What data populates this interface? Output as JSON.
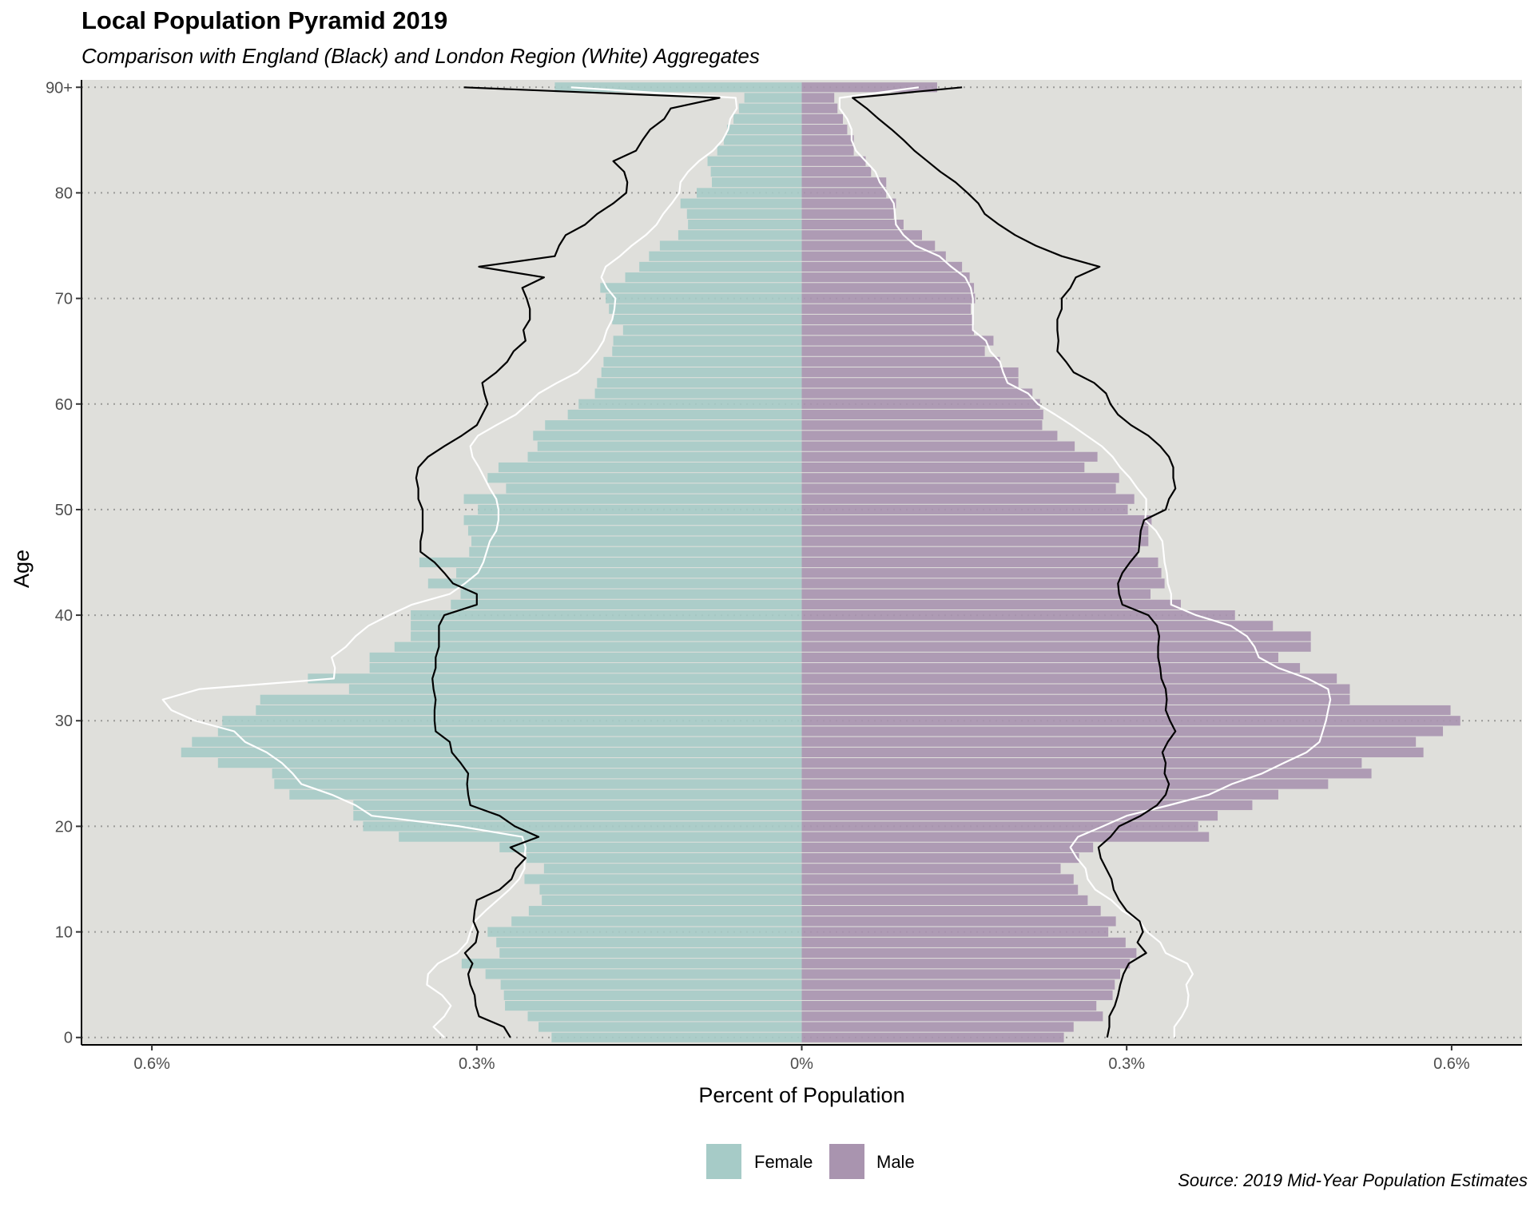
{
  "chart_data": {
    "type": "bar",
    "orientation": "horizontal",
    "title": "Local Population Pyramid 2019",
    "subtitle": "Comparison with England (Black) and London Region (White) Aggregates",
    "caption": "Source: 2019 Mid-Year Population Estimates",
    "xlabel": "Percent of Population",
    "ylabel": "Age",
    "xlim": [
      -0.665,
      0.665
    ],
    "x_tick_values": [
      -0.6,
      -0.3,
      0,
      0.3,
      0.6
    ],
    "x_tick_labels": [
      "0.6%",
      "0.3%",
      "0%",
      "0.3%",
      "0.6%"
    ],
    "y_tick_values": [
      0,
      10,
      20,
      30,
      40,
      50,
      60,
      70,
      80,
      90
    ],
    "y_tick_labels": [
      "0",
      "10",
      "20",
      "30",
      "40",
      "50",
      "60",
      "70",
      "80",
      "90+"
    ],
    "ylim": [
      -0.7,
      90.7
    ],
    "grid": "horizontal dotted at labelled ages",
    "legend_position": "bottom",
    "panel_background": "#dfdfdb",
    "ages": [
      0,
      1,
      2,
      3,
      4,
      5,
      6,
      7,
      8,
      9,
      10,
      11,
      12,
      13,
      14,
      15,
      16,
      17,
      18,
      19,
      20,
      21,
      22,
      23,
      24,
      25,
      26,
      27,
      28,
      29,
      30,
      31,
      32,
      33,
      34,
      35,
      36,
      37,
      38,
      39,
      40,
      41,
      42,
      43,
      44,
      45,
      46,
      47,
      48,
      49,
      50,
      51,
      52,
      53,
      54,
      55,
      56,
      57,
      58,
      59,
      60,
      61,
      62,
      63,
      64,
      65,
      66,
      67,
      68,
      69,
      70,
      71,
      72,
      73,
      74,
      75,
      76,
      77,
      78,
      79,
      80,
      81,
      82,
      83,
      84,
      85,
      86,
      87,
      88,
      89,
      90
    ],
    "series": [
      {
        "name": "Female",
        "color": "#a6cbc7",
        "values": [
          0.231,
          0.243,
          0.253,
          0.274,
          0.275,
          0.278,
          0.292,
          0.314,
          0.279,
          0.282,
          0.29,
          0.268,
          0.252,
          0.24,
          0.242,
          0.256,
          0.238,
          0.254,
          0.279,
          0.372,
          0.405,
          0.414,
          0.414,
          0.473,
          0.487,
          0.489,
          0.539,
          0.573,
          0.563,
          0.539,
          0.535,
          0.504,
          0.5,
          0.418,
          0.456,
          0.399,
          0.399,
          0.376,
          0.361,
          0.361,
          0.361,
          0.324,
          0.315,
          0.345,
          0.319,
          0.353,
          0.307,
          0.305,
          0.308,
          0.312,
          0.299,
          0.312,
          0.273,
          0.29,
          0.28,
          0.253,
          0.244,
          0.248,
          0.237,
          0.216,
          0.206,
          0.191,
          0.189,
          0.185,
          0.183,
          0.175,
          0.174,
          0.165,
          0.175,
          0.178,
          0.181,
          0.186,
          0.163,
          0.15,
          0.141,
          0.131,
          0.114,
          0.105,
          0.106,
          0.112,
          0.097,
          0.083,
          0.084,
          0.087,
          0.078,
          0.072,
          0.069,
          0.063,
          0.058,
          0.053,
          0.228
        ],
        "bar_opacity": 0.9
      },
      {
        "name": "Male",
        "color": "#a994af",
        "values": [
          0.242,
          0.251,
          0.278,
          0.272,
          0.287,
          0.289,
          0.294,
          0.303,
          0.309,
          0.299,
          0.283,
          0.29,
          0.276,
          0.264,
          0.255,
          0.251,
          0.239,
          0.256,
          0.269,
          0.376,
          0.366,
          0.384,
          0.416,
          0.44,
          0.486,
          0.526,
          0.517,
          0.574,
          0.567,
          0.592,
          0.608,
          0.599,
          0.506,
          0.506,
          0.494,
          0.46,
          0.44,
          0.47,
          0.47,
          0.435,
          0.4,
          0.35,
          0.322,
          0.335,
          0.332,
          0.329,
          0.31,
          0.32,
          0.32,
          0.323,
          0.301,
          0.307,
          0.29,
          0.293,
          0.261,
          0.273,
          0.252,
          0.236,
          0.222,
          0.223,
          0.22,
          0.213,
          0.2,
          0.2,
          0.183,
          0.169,
          0.177,
          0.159,
          0.158,
          0.156,
          0.16,
          0.159,
          0.155,
          0.148,
          0.133,
          0.123,
          0.111,
          0.094,
          0.085,
          0.087,
          0.078,
          0.078,
          0.064,
          0.059,
          0.048,
          0.048,
          0.042,
          0.038,
          0.033,
          0.03,
          0.125
        ],
        "bar_opacity": 0.9
      }
    ],
    "reference_lines": [
      {
        "name": "England",
        "color": "#000000",
        "female": [
          0.269,
          0.275,
          0.298,
          0.301,
          0.302,
          0.306,
          0.308,
          0.304,
          0.311,
          0.301,
          0.299,
          0.303,
          0.302,
          0.3,
          0.279,
          0.268,
          0.264,
          0.255,
          0.269,
          0.243,
          0.265,
          0.279,
          0.306,
          0.308,
          0.309,
          0.308,
          0.315,
          0.323,
          0.325,
          0.338,
          0.339,
          0.339,
          0.338,
          0.34,
          0.341,
          0.338,
          0.338,
          0.335,
          0.335,
          0.335,
          0.33,
          0.3,
          0.3,
          0.322,
          0.33,
          0.339,
          0.352,
          0.352,
          0.35,
          0.35,
          0.35,
          0.354,
          0.354,
          0.356,
          0.354,
          0.345,
          0.33,
          0.314,
          0.3,
          0.295,
          0.29,
          0.293,
          0.295,
          0.282,
          0.272,
          0.266,
          0.255,
          0.257,
          0.251,
          0.251,
          0.254,
          0.258,
          0.238,
          0.298,
          0.228,
          0.224,
          0.218,
          0.2,
          0.189,
          0.174,
          0.162,
          0.161,
          0.164,
          0.174,
          0.153,
          0.147,
          0.14,
          0.127,
          0.121,
          0.076,
          0.312
        ],
        "male": [
          0.282,
          0.284,
          0.284,
          0.289,
          0.292,
          0.294,
          0.297,
          0.302,
          0.318,
          0.31,
          0.315,
          0.312,
          0.3,
          0.293,
          0.288,
          0.286,
          0.281,
          0.276,
          0.274,
          0.285,
          0.293,
          0.313,
          0.328,
          0.336,
          0.339,
          0.335,
          0.336,
          0.333,
          0.338,
          0.345,
          0.34,
          0.336,
          0.337,
          0.336,
          0.332,
          0.331,
          0.329,
          0.329,
          0.33,
          0.328,
          0.32,
          0.296,
          0.293,
          0.292,
          0.296,
          0.303,
          0.311,
          0.312,
          0.313,
          0.316,
          0.336,
          0.339,
          0.345,
          0.343,
          0.343,
          0.339,
          0.331,
          0.32,
          0.304,
          0.292,
          0.285,
          0.281,
          0.27,
          0.251,
          0.244,
          0.236,
          0.237,
          0.236,
          0.236,
          0.24,
          0.24,
          0.248,
          0.253,
          0.275,
          0.24,
          0.216,
          0.197,
          0.182,
          0.169,
          0.163,
          0.153,
          0.142,
          0.128,
          0.116,
          0.104,
          0.094,
          0.083,
          0.071,
          0.06,
          0.047,
          0.148
        ]
      },
      {
        "name": "London Region",
        "color": "#ffffff",
        "female": [
          0.33,
          0.34,
          0.33,
          0.324,
          0.332,
          0.346,
          0.345,
          0.336,
          0.318,
          0.309,
          0.306,
          0.302,
          0.292,
          0.281,
          0.27,
          0.261,
          0.256,
          0.256,
          0.255,
          0.258,
          0.316,
          0.397,
          0.412,
          0.434,
          0.462,
          0.47,
          0.48,
          0.494,
          0.514,
          0.524,
          0.56,
          0.582,
          0.59,
          0.556,
          0.432,
          0.431,
          0.434,
          0.421,
          0.412,
          0.4,
          0.381,
          0.36,
          0.325,
          0.311,
          0.299,
          0.294,
          0.291,
          0.288,
          0.282,
          0.28,
          0.28,
          0.282,
          0.288,
          0.293,
          0.298,
          0.304,
          0.306,
          0.299,
          0.282,
          0.264,
          0.253,
          0.243,
          0.226,
          0.207,
          0.197,
          0.189,
          0.183,
          0.18,
          0.175,
          0.173,
          0.172,
          0.18,
          0.185,
          0.181,
          0.168,
          0.157,
          0.144,
          0.134,
          0.128,
          0.12,
          0.113,
          0.112,
          0.105,
          0.095,
          0.082,
          0.073,
          0.068,
          0.066,
          0.06,
          0.061,
          0.213
        ],
        "male": [
          0.344,
          0.344,
          0.351,
          0.356,
          0.357,
          0.355,
          0.361,
          0.356,
          0.336,
          0.331,
          0.319,
          0.312,
          0.296,
          0.286,
          0.271,
          0.264,
          0.262,
          0.254,
          0.248,
          0.255,
          0.278,
          0.3,
          0.339,
          0.376,
          0.397,
          0.425,
          0.445,
          0.466,
          0.478,
          0.481,
          0.484,
          0.486,
          0.488,
          0.486,
          0.467,
          0.44,
          0.422,
          0.418,
          0.411,
          0.396,
          0.364,
          0.341,
          0.341,
          0.338,
          0.337,
          0.335,
          0.334,
          0.333,
          0.327,
          0.317,
          0.318,
          0.318,
          0.31,
          0.303,
          0.294,
          0.287,
          0.277,
          0.263,
          0.249,
          0.234,
          0.218,
          0.209,
          0.19,
          0.186,
          0.183,
          0.174,
          0.17,
          0.158,
          0.158,
          0.158,
          0.158,
          0.156,
          0.151,
          0.138,
          0.127,
          0.105,
          0.094,
          0.087,
          0.086,
          0.085,
          0.079,
          0.072,
          0.068,
          0.059,
          0.05,
          0.046,
          0.046,
          0.042,
          0.035,
          0.035,
          0.108
        ]
      }
    ]
  }
}
